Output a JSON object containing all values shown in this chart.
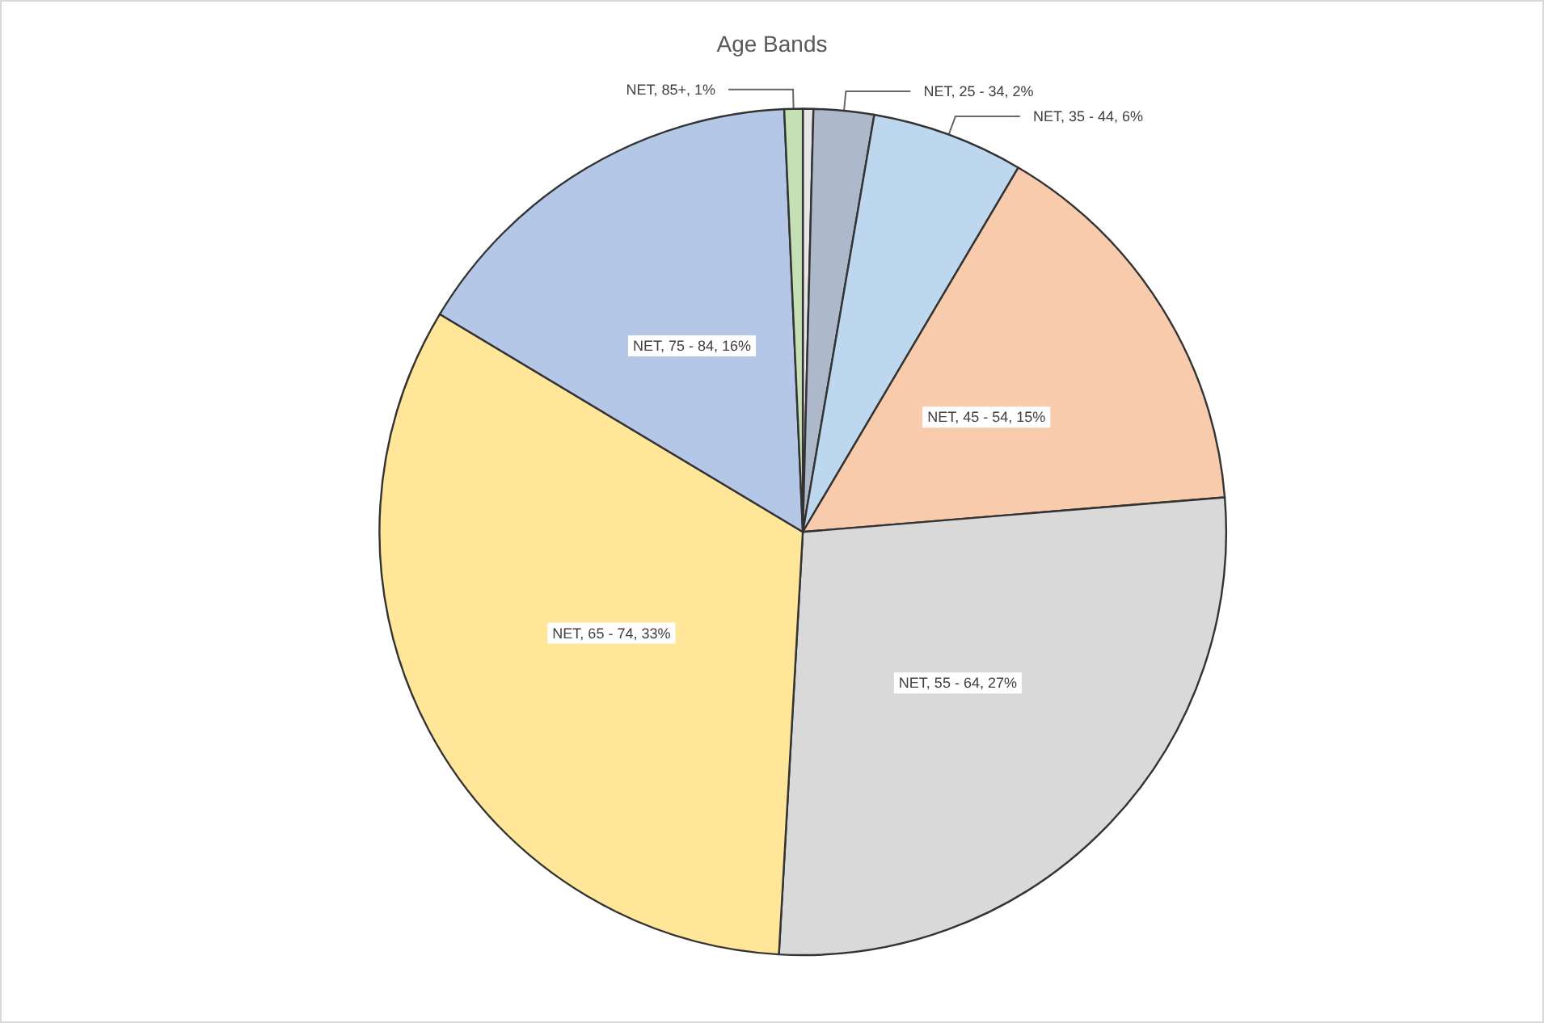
{
  "chart_data": {
    "type": "pie",
    "title": "Age Bands",
    "categories": [
      null,
      "NET, 25 - 34",
      "NET, 35 - 44",
      "NET, 45 - 54",
      "NET, 55 - 64",
      "NET, 65 - 74",
      "NET, 75 - 84",
      "NET, 85+"
    ],
    "values": [
      0.4,
      2.3,
      5.8,
      15.2,
      27.2,
      32.7,
      15.7,
      0.7
    ],
    "value_labels": [
      null,
      "2%",
      "6%",
      "15%",
      "27%",
      "33%",
      "16%",
      "1%"
    ],
    "colors": [
      "#e7e6e6",
      "#adb9ca",
      "#bdd7ee",
      "#f8cbad",
      "#d9d9d9",
      "#ffe699",
      "#b4c7e7",
      "#c5e0b4"
    ],
    "legend": false
  }
}
